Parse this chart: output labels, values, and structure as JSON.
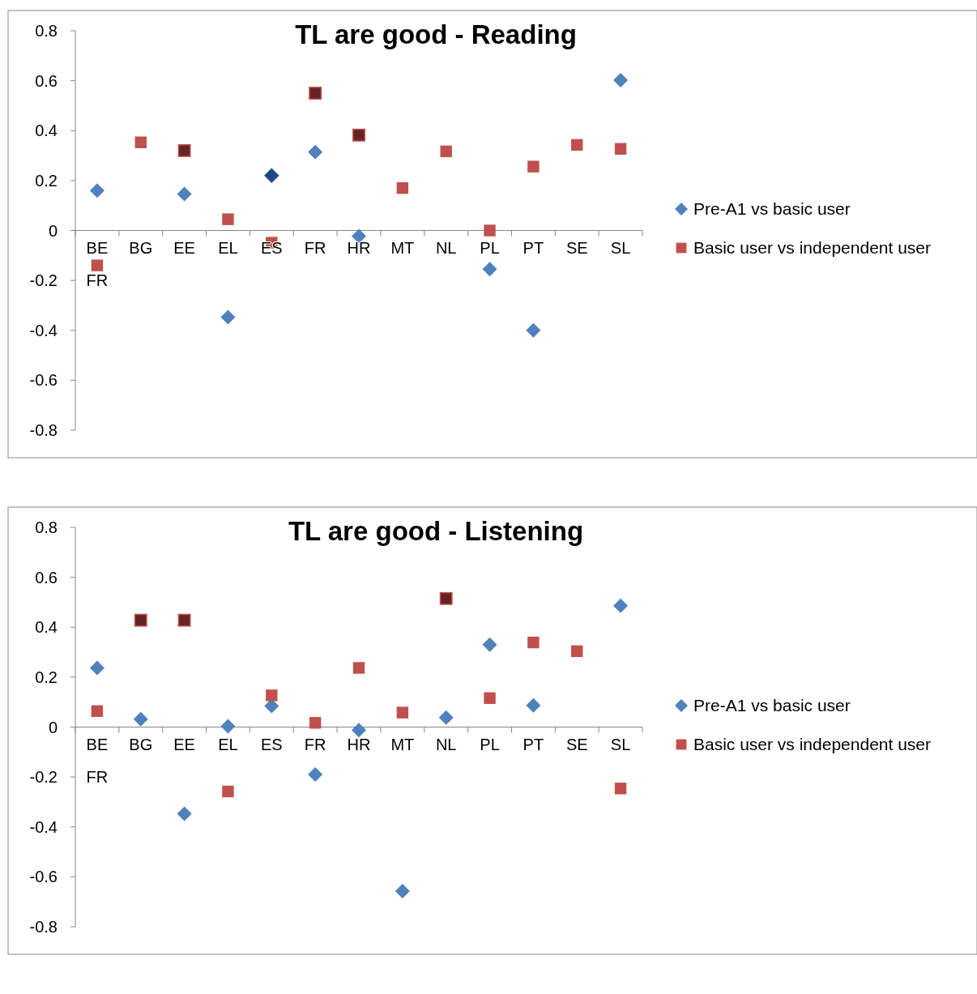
{
  "chart_data": [
    {
      "type": "scatter",
      "title": "TL are good - Reading",
      "categories": [
        "BE FR",
        "BG",
        "EE",
        "EL",
        "ES",
        "FR",
        "HR",
        "MT",
        "NL",
        "PL",
        "PT",
        "SE",
        "SL"
      ],
      "ylim": [
        -0.8,
        0.8
      ],
      "yticks": [
        -0.8,
        -0.6,
        -0.4,
        -0.2,
        0,
        0.2,
        0.4,
        0.6,
        0.8
      ],
      "legend": "right",
      "grid": false,
      "series": [
        {
          "name": "Pre-A1 vs basic user",
          "color": "#4f81bd",
          "marker": "diamond",
          "values": [
            0.16,
            null,
            0.146,
            -0.347,
            0.22,
            0.314,
            -0.023,
            null,
            null,
            -0.155,
            -0.4,
            null,
            0.602
          ],
          "colors": [
            "#4f81bd",
            null,
            "#4f81bd",
            "#4f81bd",
            "#1f497d",
            "#4f81bd",
            "#4f81bd",
            null,
            null,
            "#4f81bd",
            "#4f81bd",
            null,
            "#4f81bd"
          ]
        },
        {
          "name": "Basic user vs independent user",
          "color": "#c0504d",
          "marker": "square",
          "values": [
            -0.14,
            0.353,
            0.32,
            0.045,
            -0.049,
            0.55,
            0.382,
            0.17,
            0.317,
            0,
            0.256,
            0.343,
            0.327
          ],
          "colors": [
            "#c0504d",
            "#c0504d",
            "#632523",
            "#c0504d",
            "#c0504d",
            "#632523",
            "#632523",
            "#c0504d",
            "#c0504d",
            "#c0504d",
            "#c0504d",
            "#c0504d",
            "#c0504d"
          ]
        }
      ]
    },
    {
      "type": "scatter",
      "title": "TL are good - Listening",
      "categories": [
        "BE FR",
        "BG",
        "EE",
        "EL",
        "ES",
        "FR",
        "HR",
        "MT",
        "NL",
        "PL",
        "PT",
        "SE",
        "SL"
      ],
      "ylim": [
        -0.8,
        0.8
      ],
      "yticks": [
        -0.8,
        -0.6,
        -0.4,
        -0.2,
        0,
        0.2,
        0.4,
        0.6,
        0.8
      ],
      "legend": "right",
      "grid": false,
      "series": [
        {
          "name": "Pre-A1 vs basic user",
          "color": "#4f81bd",
          "marker": "diamond",
          "values": [
            0.237,
            0.032,
            -0.347,
            0.003,
            0.084,
            -0.19,
            -0.012,
            -0.657,
            0.038,
            0.33,
            0.087,
            null,
            0.486
          ]
        },
        {
          "name": "Basic user vs independent user",
          "color": "#c0504d",
          "marker": "square",
          "values": [
            0.064,
            0.428,
            0.428,
            -0.258,
            0.127,
            0.017,
            0.237,
            0.058,
            0.515,
            0.116,
            0.339,
            0.304,
            -0.246
          ],
          "colors": [
            "#c0504d",
            "#632523",
            "#632523",
            "#c0504d",
            "#c0504d",
            "#c0504d",
            "#c0504d",
            "#c0504d",
            "#632523",
            "#c0504d",
            "#c0504d",
            "#c0504d",
            "#c0504d"
          ]
        }
      ]
    }
  ]
}
